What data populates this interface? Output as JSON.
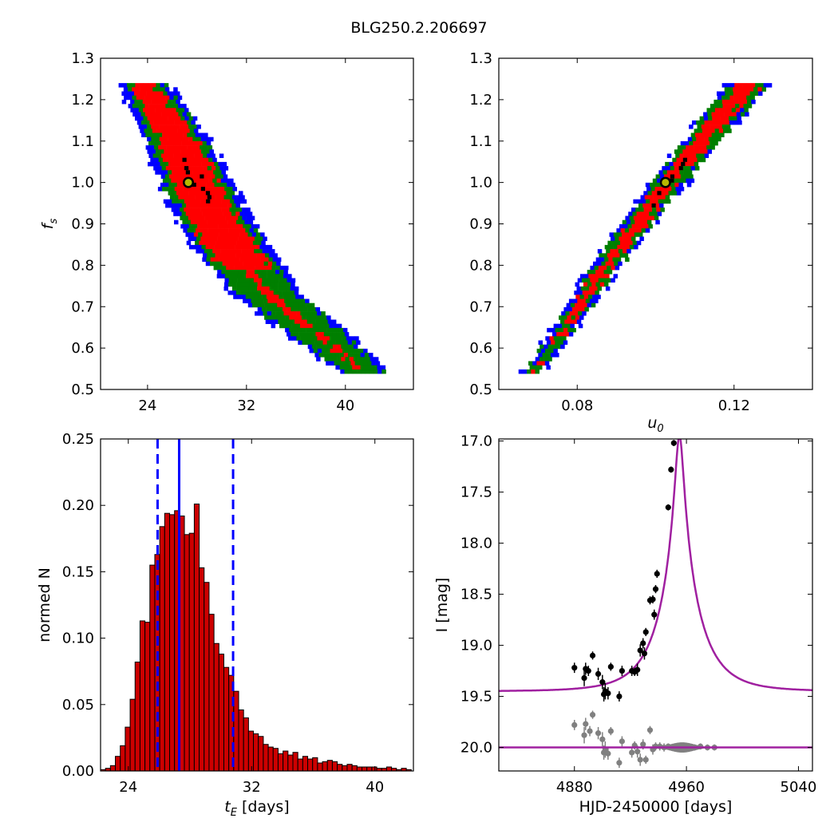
{
  "figure": {
    "title": "BLG250.2.206697"
  },
  "chart_data": [
    {
      "id": "fs_vs_tE",
      "type": "heatmap",
      "xlabel": "",
      "ylabel": "f_s",
      "xlim": [
        20.2,
        45.5
      ],
      "ylim": [
        0.5,
        1.3
      ],
      "xticks": [
        24,
        32,
        40
      ],
      "yticks": [
        0.5,
        0.6,
        0.7,
        0.8,
        0.9,
        1.0,
        1.1,
        1.2,
        1.3
      ],
      "levels": [
        "blue",
        "green",
        "red",
        "black"
      ],
      "colors": {
        "blue": "#0000ff",
        "green": "#007f00",
        "red": "#ff0000",
        "black": "#000000"
      },
      "ridge": [
        [
          23.6,
          1.235
        ],
        [
          25.5,
          1.15
        ],
        [
          27.2,
          1.04
        ],
        [
          29.0,
          0.93
        ],
        [
          31.0,
          0.83
        ],
        [
          33.5,
          0.74
        ],
        [
          36.5,
          0.665
        ],
        [
          39.0,
          0.605
        ],
        [
          41.2,
          0.55
        ]
      ],
      "best_fit": {
        "x": 27.3,
        "y": 1.0
      }
    },
    {
      "id": "fs_vs_u0",
      "type": "heatmap",
      "xlabel": "u_0",
      "ylabel": "",
      "xlim": [
        0.06,
        0.14
      ],
      "ylim": [
        0.5,
        1.3
      ],
      "xticks": [
        0.08,
        0.12
      ],
      "yticks": [
        0.5,
        0.6,
        0.7,
        0.8,
        0.9,
        1.0,
        1.1,
        1.2,
        1.3
      ],
      "levels": [
        "blue",
        "green",
        "red",
        "black"
      ],
      "colors": {
        "blue": "#0000ff",
        "green": "#007f00",
        "red": "#ff0000",
        "black": "#000000"
      },
      "ridge": [
        [
          0.068,
          0.545
        ],
        [
          0.076,
          0.65
        ],
        [
          0.085,
          0.78
        ],
        [
          0.096,
          0.92
        ],
        [
          0.105,
          1.03
        ],
        [
          0.115,
          1.15
        ],
        [
          0.123,
          1.235
        ]
      ],
      "best_fit": {
        "x": 0.1025,
        "y": 1.0
      }
    },
    {
      "id": "tE_histogram",
      "type": "bar",
      "xlabel": "t_E [days]",
      "ylabel": "normed N",
      "xlim": [
        22.2,
        42.5
      ],
      "ylim": [
        0.0,
        0.25
      ],
      "xticks": [
        24,
        32,
        40
      ],
      "yticks": [
        0.0,
        0.05,
        0.1,
        0.15,
        0.2,
        0.25
      ],
      "bin_width": 0.32,
      "bin_start": 22.2,
      "values": [
        0.001,
        0.002,
        0.004,
        0.011,
        0.019,
        0.033,
        0.054,
        0.082,
        0.113,
        0.112,
        0.155,
        0.163,
        0.184,
        0.194,
        0.193,
        0.196,
        0.192,
        0.178,
        0.179,
        0.201,
        0.153,
        0.142,
        0.118,
        0.096,
        0.088,
        0.078,
        0.072,
        0.06,
        0.046,
        0.04,
        0.03,
        0.028,
        0.026,
        0.02,
        0.018,
        0.017,
        0.013,
        0.015,
        0.012,
        0.014,
        0.009,
        0.011,
        0.009,
        0.01,
        0.006,
        0.007,
        0.008,
        0.007,
        0.005,
        0.004,
        0.005,
        0.004,
        0.003,
        0.003,
        0.003,
        0.003,
        0.002,
        0.002,
        0.003,
        0.002,
        0.001,
        0.002,
        0.001
      ],
      "bar_color": "#cc0000",
      "median": 27.3,
      "lower": 25.9,
      "upper": 30.8,
      "line_color": "#0000ff"
    },
    {
      "id": "lightcurve",
      "type": "scatter",
      "xlabel": "HJD-2450000 [days]",
      "ylabel": "I [mag]",
      "xlim": [
        4826,
        5050
      ],
      "ylim": [
        20.23,
        16.98
      ],
      "xticks": [
        4880,
        4960,
        5040
      ],
      "yticks": [
        17.0,
        17.5,
        18.0,
        18.5,
        19.0,
        19.5,
        20.0
      ],
      "model": {
        "t0": 4955,
        "u0": 0.1,
        "tE": 27.5,
        "baseline": 19.45,
        "color": "#a020a0"
      },
      "residual_baseline": 20.0,
      "data_points": [
        [
          4880,
          19.22,
          0.05
        ],
        [
          4887,
          19.32,
          0.08
        ],
        [
          4888,
          19.23,
          0.06
        ],
        [
          4890,
          19.25,
          0.05
        ],
        [
          4893,
          19.1,
          0.04
        ],
        [
          4897,
          19.28,
          0.06
        ],
        [
          4900,
          19.36,
          0.07
        ],
        [
          4901,
          19.48,
          0.07
        ],
        [
          4902,
          19.45,
          0.08
        ],
        [
          4904,
          19.47,
          0.06
        ],
        [
          4906,
          19.21,
          0.04
        ],
        [
          4912,
          19.5,
          0.05
        ],
        [
          4914,
          19.25,
          0.05
        ],
        [
          4921,
          19.25,
          0.05
        ],
        [
          4923,
          19.26,
          0.04
        ],
        [
          4925,
          19.24,
          0.06
        ],
        [
          4927,
          19.05,
          0.06
        ],
        [
          4929,
          18.98,
          0.05
        ],
        [
          4930,
          19.08,
          0.06
        ],
        [
          4931,
          18.87,
          0.04
        ],
        [
          4934,
          18.56,
          0.04
        ],
        [
          4936,
          18.55,
          0.04
        ],
        [
          4937,
          18.7,
          0.05
        ],
        [
          4938,
          18.45,
          0.04
        ],
        [
          4939,
          18.3,
          0.04
        ],
        [
          4947,
          17.65,
          0.03
        ],
        [
          4949,
          17.28,
          0.03
        ],
        [
          4951,
          17.02,
          0.03
        ]
      ],
      "residual_points": [
        [
          4880,
          19.78,
          0.05
        ],
        [
          4887,
          19.88,
          0.08
        ],
        [
          4888,
          19.77,
          0.06
        ],
        [
          4891,
          19.84,
          0.05
        ],
        [
          4893,
          19.68,
          0.04
        ],
        [
          4897,
          19.86,
          0.06
        ],
        [
          4900,
          19.92,
          0.07
        ],
        [
          4901,
          20.05,
          0.07
        ],
        [
          4902,
          20.02,
          0.08
        ],
        [
          4904,
          20.06,
          0.06
        ],
        [
          4906,
          19.84,
          0.04
        ],
        [
          4912,
          20.15,
          0.05
        ],
        [
          4914,
          19.94,
          0.05
        ],
        [
          4921,
          20.05,
          0.05
        ],
        [
          4923,
          19.98,
          0.04
        ],
        [
          4925,
          20.04,
          0.06
        ],
        [
          4927,
          20.12,
          0.06
        ],
        [
          4929,
          19.97,
          0.05
        ],
        [
          4931,
          20.12,
          0.04
        ],
        [
          4934,
          19.83,
          0.04
        ],
        [
          4936,
          20.02,
          0.05
        ],
        [
          4938,
          19.99,
          0.04
        ],
        [
          4941,
          19.99,
          0.04
        ],
        [
          4944,
          20.0,
          0.04
        ],
        [
          4947,
          19.99,
          0.03
        ],
        [
          4950,
          20.0,
          0.03
        ],
        [
          4953,
          19.99,
          0.03
        ],
        [
          4956,
          20.01,
          0.03
        ],
        [
          4959,
          20.0,
          0.03
        ],
        [
          4962,
          20.0,
          0.03
        ],
        [
          4966,
          20.0,
          0.03
        ],
        [
          4970,
          19.99,
          0.03
        ],
        [
          4975,
          20.0,
          0.03
        ],
        [
          4980,
          20.0,
          0.03
        ]
      ],
      "data_color": "#000000",
      "residual_color": "#808080"
    }
  ]
}
